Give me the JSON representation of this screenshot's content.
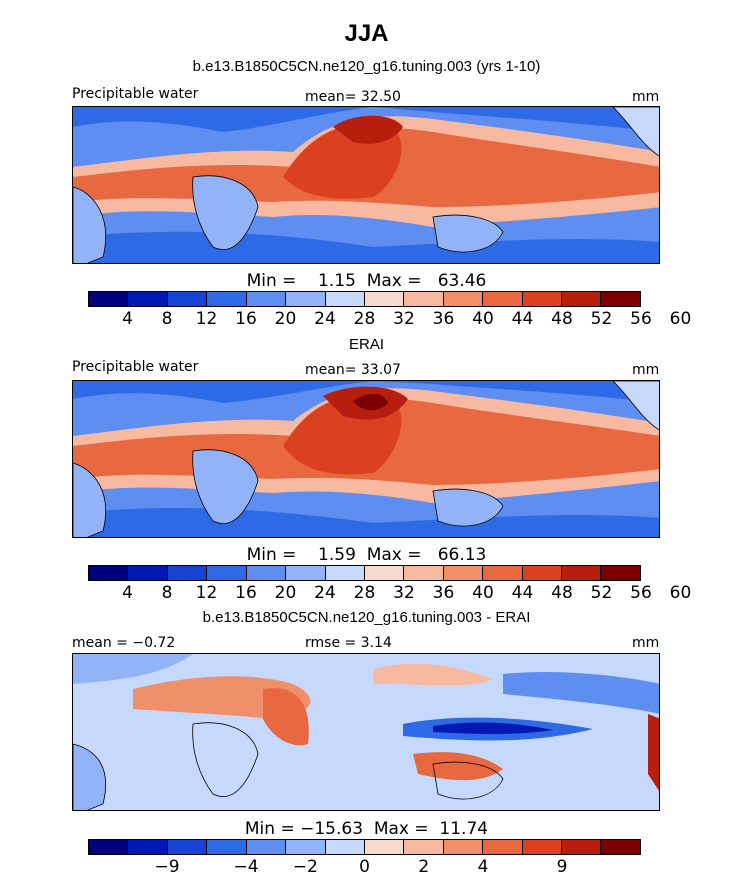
{
  "figure": {
    "title": "JJA"
  },
  "colors": {
    "full_scale": [
      "#00007f",
      "#0019b4",
      "#1743d2",
      "#2e6ae6",
      "#5e8ef0",
      "#92b3f7",
      "#c6d8fc",
      "#f7dacd",
      "#f7b9a0",
      "#f0906b",
      "#e8683f",
      "#db4121",
      "#b81e0e",
      "#7d0000"
    ],
    "diff_scale": [
      "#00007f",
      "#0019b4",
      "#1743d2",
      "#2e6ae6",
      "#5e8ef0",
      "#92b3f7",
      "#c6d8fc",
      "#f7dacd",
      "#f7b9a0",
      "#f0906b",
      "#e8683f",
      "#db4121",
      "#b81e0e",
      "#7d0000"
    ]
  },
  "chart_data": [
    {
      "type": "heatmap",
      "title": "b.e13.B1850C5CN.ne120_g16.tuning.003 (yrs 1-10)",
      "left_label": "Precipitable water",
      "center_label": "mean=  32.50",
      "right_label": "mm",
      "stats": "Min =    1.15  Max =   63.46",
      "min": 1.15,
      "max": 63.46,
      "mean": 32.5,
      "colorbar_levels": [
        4,
        8,
        12,
        16,
        20,
        24,
        28,
        32,
        36,
        40,
        44,
        48,
        52,
        56,
        60
      ],
      "colorbar_tick_labels": [
        "4",
        "8",
        "12",
        "16",
        "20",
        "24",
        "28",
        "32",
        "36",
        "40",
        "44",
        "48",
        "52",
        "56",
        "60"
      ]
    },
    {
      "type": "heatmap",
      "title": "ERAI",
      "left_label": "Precipitable water",
      "center_label": "mean=  33.07",
      "right_label": "mm",
      "stats": "Min =    1.59  Max =   66.13",
      "min": 1.59,
      "max": 66.13,
      "mean": 33.07,
      "colorbar_levels": [
        4,
        8,
        12,
        16,
        20,
        24,
        28,
        32,
        36,
        40,
        44,
        48,
        52,
        56,
        60
      ],
      "colorbar_tick_labels": [
        "4",
        "8",
        "12",
        "16",
        "20",
        "24",
        "28",
        "32",
        "36",
        "40",
        "44",
        "48",
        "52",
        "56",
        "60"
      ]
    },
    {
      "type": "heatmap",
      "title": "b.e13.B1850C5CN.ne120_g16.tuning.003 - ERAI",
      "left_label": "mean =  −0.72",
      "center_label": "rmse =   3.14",
      "right_label": "mm",
      "stats": "Min = −15.63  Max =  11.74",
      "min": -15.63,
      "max": 11.74,
      "mean": -0.72,
      "rmse": 3.14,
      "colorbar_tick_labels": [
        "−9",
        "−4",
        "−2",
        "0",
        "2",
        "4",
        "9"
      ]
    }
  ]
}
